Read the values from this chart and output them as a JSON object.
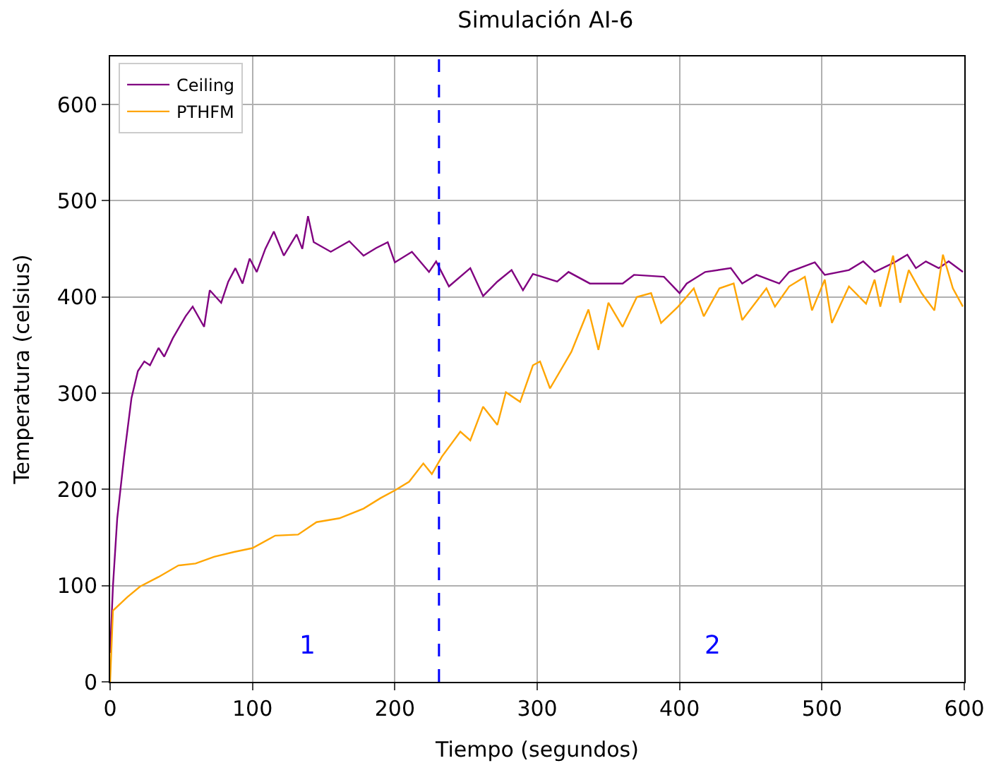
{
  "chart_data": {
    "type": "line",
    "title": "Simulación AI-6",
    "xlabel": "Tiempo (segundos)",
    "ylabel": "Temperatura (celsius)",
    "xlim": [
      0,
      600
    ],
    "ylim": [
      0,
      650
    ],
    "xticks": [
      0,
      100,
      200,
      300,
      400,
      500,
      600
    ],
    "yticks": [
      0,
      100,
      200,
      300,
      400,
      500,
      600
    ],
    "grid": true,
    "legend": "top left",
    "series": [
      {
        "name": "Ceiling",
        "color": "#800080",
        "x": [
          0,
          2,
          5,
          9.8,
          15,
          19.5,
          24,
          28,
          34,
          38,
          44,
          53,
          58,
          66,
          70,
          78,
          83,
          88,
          93,
          98,
          103,
          109,
          115,
          122,
          131,
          135,
          139,
          143,
          155,
          168,
          178,
          187,
          195,
          200,
          212,
          224,
          229,
          238,
          253,
          262,
          272,
          282,
          290,
          297,
          314,
          322,
          337,
          360,
          368,
          389,
          400,
          405,
          418,
          436,
          444,
          454,
          470,
          477,
          495,
          502,
          519,
          529,
          537,
          551,
          560,
          566,
          573,
          582,
          589,
          599
        ],
        "values": [
          30,
          100,
          170,
          234,
          295,
          323,
          333,
          329,
          347,
          338,
          357,
          380,
          390,
          369,
          407,
          394,
          416,
          430,
          414,
          440,
          426,
          450,
          468,
          443,
          465,
          450,
          484,
          457,
          447,
          458,
          443,
          451,
          457,
          436,
          447,
          426,
          437,
          411,
          430,
          401,
          416,
          428,
          407,
          424,
          416,
          426,
          414,
          414,
          423,
          421,
          404,
          414,
          426,
          430,
          414,
          423,
          414,
          426,
          436,
          423,
          428,
          437,
          426,
          436,
          444,
          430,
          437,
          430,
          437,
          426
        ]
      },
      {
        "name": "PTHFM",
        "color": "#ffa500",
        "x": [
          0,
          2,
          12,
          21,
          34,
          48,
          60,
          73,
          87,
          100,
          116,
          132,
          145,
          161,
          178,
          190,
          200,
          210,
          220,
          226,
          233,
          246,
          253,
          262,
          272,
          278,
          288,
          297,
          302,
          309,
          324,
          336,
          343,
          350,
          360,
          370,
          380,
          387,
          399,
          410,
          417,
          428,
          438,
          444,
          461,
          467,
          477,
          488,
          493,
          502,
          507,
          519,
          531,
          537,
          541,
          550,
          555,
          561,
          570,
          579,
          585,
          592,
          599
        ],
        "values": [
          0,
          74,
          88,
          99,
          109,
          121,
          123,
          130,
          135,
          139,
          152,
          153,
          166,
          170,
          180,
          191,
          199,
          208,
          227,
          216,
          234,
          260,
          251,
          286,
          267,
          301,
          291,
          329,
          333,
          305,
          343,
          387,
          345,
          394,
          369,
          400,
          404,
          373,
          390,
          409,
          380,
          409,
          414,
          376,
          409,
          390,
          411,
          421,
          386,
          418,
          373,
          411,
          393,
          418,
          390,
          443,
          394,
          428,
          404,
          386,
          444,
          409,
          390
        ]
      }
    ],
    "ref_lines": [
      {
        "axis": "x",
        "value": 231,
        "color": "#0000ff",
        "line_style": "dashed"
      }
    ],
    "annotations": [
      "1",
      "2"
    ]
  }
}
